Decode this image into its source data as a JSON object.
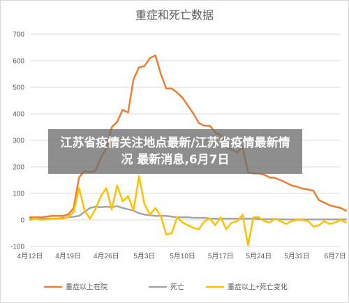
{
  "banner": {
    "text": "江苏省疫情关注地点最新/江苏省疫情最新情况 最新消息,6月7日"
  },
  "chart_data": {
    "type": "line",
    "title": "重症和死亡数据",
    "xlabel": "",
    "ylabel": "",
    "ylim": [
      -100,
      700
    ],
    "yticks": [
      -100,
      0,
      100,
      200,
      300,
      400,
      500,
      600,
      700
    ],
    "grid": true,
    "legend_position": "bottom",
    "x_range": [
      "2020-04-12",
      "2020-06-08"
    ],
    "xtick_labels": [
      "4月12日",
      "4月19日",
      "4月26日",
      "5月3日",
      "5月10日",
      "5月17日",
      "5月24日",
      "5月31日",
      "6月7日"
    ],
    "series": [
      {
        "name": "重症以上在院",
        "color": "#ED7D31",
        "start_date": "2020-04-12",
        "values": [
          10,
          10,
          10,
          12,
          15,
          15,
          15,
          20,
          45,
          160,
          185,
          180,
          185,
          235,
          270,
          350,
          370,
          415,
          405,
          530,
          575,
          580,
          610,
          620,
          550,
          495,
          495,
          480,
          460,
          430,
          400,
          365,
          355,
          355,
          330,
          320,
          275,
          265,
          255,
          275,
          180,
          175,
          175,
          170,
          160,
          158,
          150,
          140,
          130,
          125,
          118,
          115,
          110,
          75,
          65,
          55,
          50,
          45,
          35
        ]
      },
      {
        "name": "死亡",
        "color": "#A5A5A5",
        "start_date": "2020-04-12",
        "values": [
          5,
          5,
          5,
          5,
          5,
          5,
          8,
          10,
          12,
          15,
          30,
          45,
          50,
          48,
          50,
          48,
          52,
          45,
          40,
          35,
          25,
          20,
          18,
          15,
          15,
          15,
          12,
          10,
          10,
          10,
          8,
          8,
          8,
          5,
          5,
          5,
          5,
          5,
          5,
          5,
          5,
          5,
          3,
          3,
          3,
          3,
          2,
          2,
          2,
          2,
          2,
          2,
          2,
          2,
          2,
          2,
          2,
          2,
          2
        ]
      },
      {
        "name": "重症以上+死亡变化",
        "color": "#FFC000",
        "start_date": "2020-04-12",
        "values": [
          0,
          5,
          0,
          2,
          5,
          5,
          5,
          10,
          30,
          120,
          35,
          5,
          40,
          90,
          120,
          40,
          130,
          70,
          90,
          35,
          165,
          60,
          20,
          45,
          15,
          -55,
          -50,
          10,
          -10,
          -20,
          -30,
          -35,
          -5,
          5,
          -20,
          10,
          -35,
          -10,
          -5,
          20,
          -95,
          10,
          10,
          -5,
          -10,
          5,
          -5,
          -15,
          -5,
          0,
          0,
          -5,
          -25,
          -20,
          -5,
          -15,
          -10,
          0,
          -10
        ]
      }
    ]
  }
}
